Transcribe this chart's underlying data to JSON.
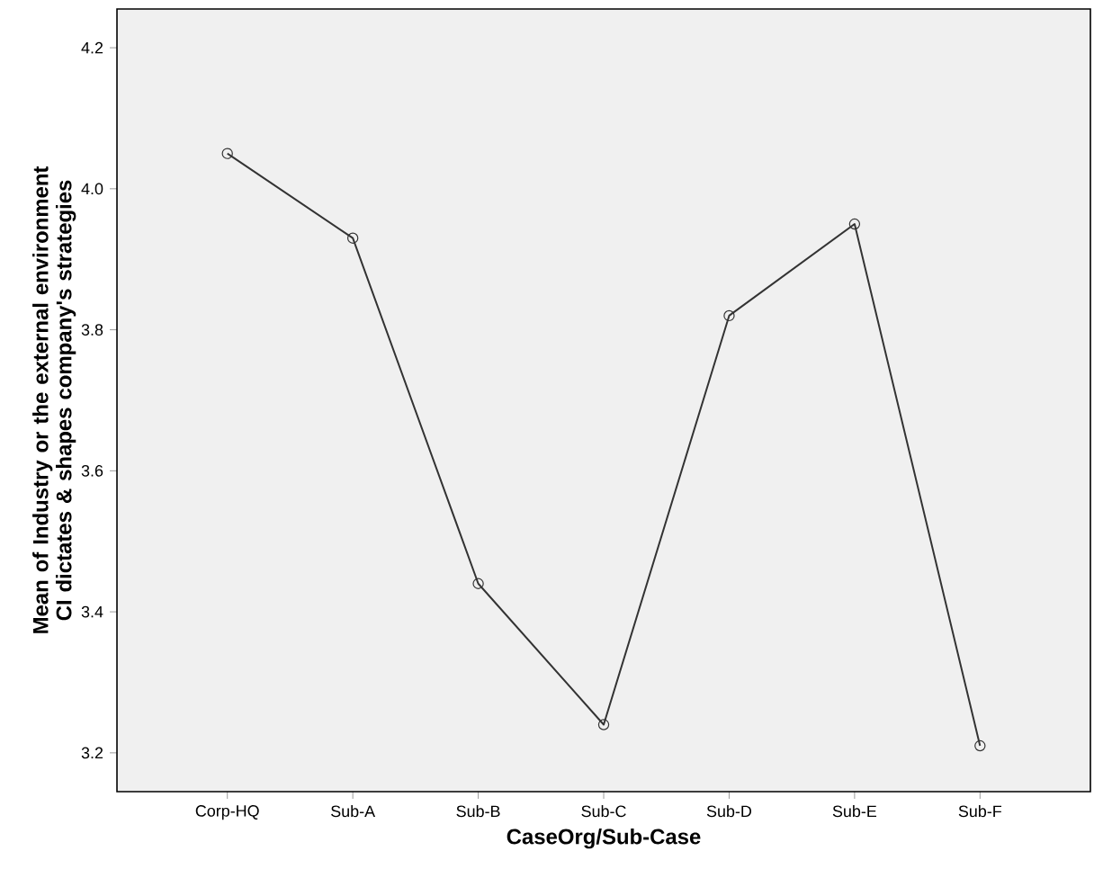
{
  "chart_data": {
    "type": "line",
    "xlabel": "CaseOrg/Sub-Case",
    "ylabel": "Mean of Industry or the external environment CI dictates & shapes company's strategies",
    "categories": [
      "Corp-HQ",
      "Sub-A",
      "Sub-B",
      "Sub-C",
      "Sub-D",
      "Sub-E",
      "Sub-F"
    ],
    "values": [
      4.05,
      3.93,
      3.44,
      3.24,
      3.82,
      3.95,
      3.21
    ],
    "color": "#333333",
    "ylim": [
      3.145,
      4.255
    ],
    "yticks": [
      {
        "value": 3.2,
        "label": "3.2"
      },
      {
        "value": 3.4,
        "label": "3.4"
      },
      {
        "value": 3.6,
        "label": "3.6"
      },
      {
        "value": 3.8,
        "label": "3.8"
      },
      {
        "value": 4.0,
        "label": "4.0"
      },
      {
        "value": 4.2,
        "label": "4.2"
      }
    ],
    "grid": false,
    "marker": "circle",
    "line_style": "solid"
  }
}
